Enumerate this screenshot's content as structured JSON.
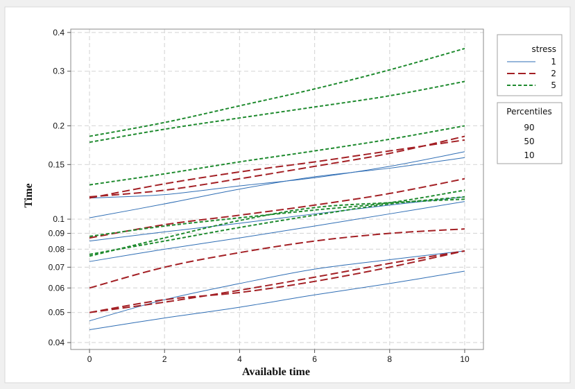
{
  "chart_data": {
    "type": "line",
    "xlabel": "Available time",
    "ylabel": "Time",
    "xlim": [
      -0.5,
      10.5
    ],
    "ylim": [
      0.038,
      0.41
    ],
    "yscale": "log",
    "grid": true,
    "x_ticks": [
      0,
      2,
      4,
      6,
      8,
      10
    ],
    "x_tick_labels": [
      "0",
      "2",
      "4",
      "6",
      "8",
      "10"
    ],
    "y_ticks": [
      0.04,
      0.05,
      0.06,
      0.07,
      0.08,
      0.09,
      0.1,
      0.15,
      0.2,
      0.3,
      0.4
    ],
    "y_tick_labels": [
      "0.04",
      "0.05",
      "0.06",
      "0.07",
      "0.08",
      "0.09",
      "0.1",
      "0.15",
      "0.2",
      "0.3",
      "0.4"
    ],
    "x": [
      0,
      2,
      4,
      6,
      8,
      10
    ],
    "series": [
      {
        "stress": "1",
        "percentile": "90",
        "bound": "upper",
        "style": "solid",
        "color": "#2e6db4",
        "values": [
          0.117,
          0.12,
          0.128,
          0.136,
          0.148,
          0.165
        ]
      },
      {
        "stress": "1",
        "percentile": "90",
        "bound": "lower",
        "style": "solid",
        "color": "#2e6db4",
        "values": [
          0.101,
          0.112,
          0.125,
          0.137,
          0.146,
          0.158
        ]
      },
      {
        "stress": "1",
        "percentile": "50",
        "bound": "upper",
        "style": "solid",
        "color": "#2e6db4",
        "values": [
          0.085,
          0.091,
          0.097,
          0.104,
          0.111,
          0.118
        ]
      },
      {
        "stress": "1",
        "percentile": "50",
        "bound": "lower",
        "style": "solid",
        "color": "#2e6db4",
        "values": [
          0.073,
          0.08,
          0.087,
          0.095,
          0.104,
          0.114
        ]
      },
      {
        "stress": "1",
        "percentile": "10",
        "bound": "upper",
        "style": "solid",
        "color": "#2e6db4",
        "values": [
          0.047,
          0.055,
          0.062,
          0.069,
          0.074,
          0.079
        ]
      },
      {
        "stress": "1",
        "percentile": "10",
        "bound": "lower",
        "style": "solid",
        "color": "#2e6db4",
        "values": [
          0.044,
          0.048,
          0.052,
          0.057,
          0.062,
          0.068
        ]
      },
      {
        "stress": "2",
        "percentile": "90",
        "bound": "upper",
        "style": "dash",
        "color": "#a31f24",
        "values": [
          0.118,
          0.124,
          0.135,
          0.148,
          0.163,
          0.185
        ]
      },
      {
        "stress": "2",
        "percentile": "90",
        "bound": "lower",
        "style": "dash",
        "color": "#a31f24",
        "values": [
          0.117,
          0.13,
          0.142,
          0.153,
          0.166,
          0.18
        ]
      },
      {
        "stress": "2",
        "percentile": "50",
        "bound": "upper",
        "style": "dash",
        "color": "#a31f24",
        "values": [
          0.087,
          0.096,
          0.103,
          0.111,
          0.121,
          0.135
        ]
      },
      {
        "stress": "2",
        "percentile": "50",
        "bound": "lower",
        "style": "dash",
        "color": "#a31f24",
        "values": [
          0.06,
          0.07,
          0.078,
          0.085,
          0.09,
          0.093
        ]
      },
      {
        "stress": "2",
        "percentile": "10",
        "bound": "upper",
        "style": "dash",
        "color": "#a31f24",
        "values": [
          0.05,
          0.054,
          0.059,
          0.065,
          0.072,
          0.079
        ]
      },
      {
        "stress": "2",
        "percentile": "10",
        "bound": "lower",
        "style": "dash",
        "color": "#a31f24",
        "values": [
          0.05,
          0.055,
          0.058,
          0.063,
          0.07,
          0.079
        ]
      },
      {
        "stress": "5",
        "percentile": "90",
        "bound": "upper",
        "style": "short-dash",
        "color": "#1e8a2e",
        "values": [
          0.185,
          0.205,
          0.232,
          0.263,
          0.303,
          0.355
        ]
      },
      {
        "stress": "5",
        "percentile": "90",
        "bound": "lower",
        "style": "short-dash",
        "color": "#1e8a2e",
        "values": [
          0.177,
          0.195,
          0.212,
          0.23,
          0.25,
          0.278
        ]
      },
      {
        "stress": "5",
        "percentile": "50",
        "bound": "upper",
        "style": "short-dash",
        "color": "#1e8a2e",
        "values": [
          0.129,
          0.14,
          0.153,
          0.166,
          0.181,
          0.2
        ]
      },
      {
        "stress": "5",
        "percentile": "50",
        "bound": "lower",
        "style": "short-dash",
        "color": "#1e8a2e",
        "values": [
          0.088,
          0.095,
          0.101,
          0.107,
          0.113,
          0.124
        ]
      },
      {
        "stress": "5",
        "percentile": "10",
        "bound": "upper",
        "style": "short-dash",
        "color": "#1e8a2e",
        "values": [
          0.077,
          0.085,
          0.094,
          0.103,
          0.112,
          0.118
        ]
      },
      {
        "stress": "5",
        "percentile": "10",
        "bound": "lower",
        "style": "short-dash",
        "color": "#1e8a2e",
        "values": [
          0.076,
          0.087,
          0.099,
          0.109,
          0.113,
          0.116
        ]
      }
    ],
    "legend": {
      "placement": "right",
      "stress_title": "stress",
      "stress_entries": [
        {
          "label": "1",
          "style": "solid",
          "color": "#2e6db4"
        },
        {
          "label": "2",
          "style": "dash",
          "color": "#a31f24"
        },
        {
          "label": "5",
          "style": "short-dash",
          "color": "#1e8a2e"
        }
      ],
      "percentiles_title": "Percentiles",
      "percentile_entries": [
        "90",
        "50",
        "10"
      ]
    }
  }
}
